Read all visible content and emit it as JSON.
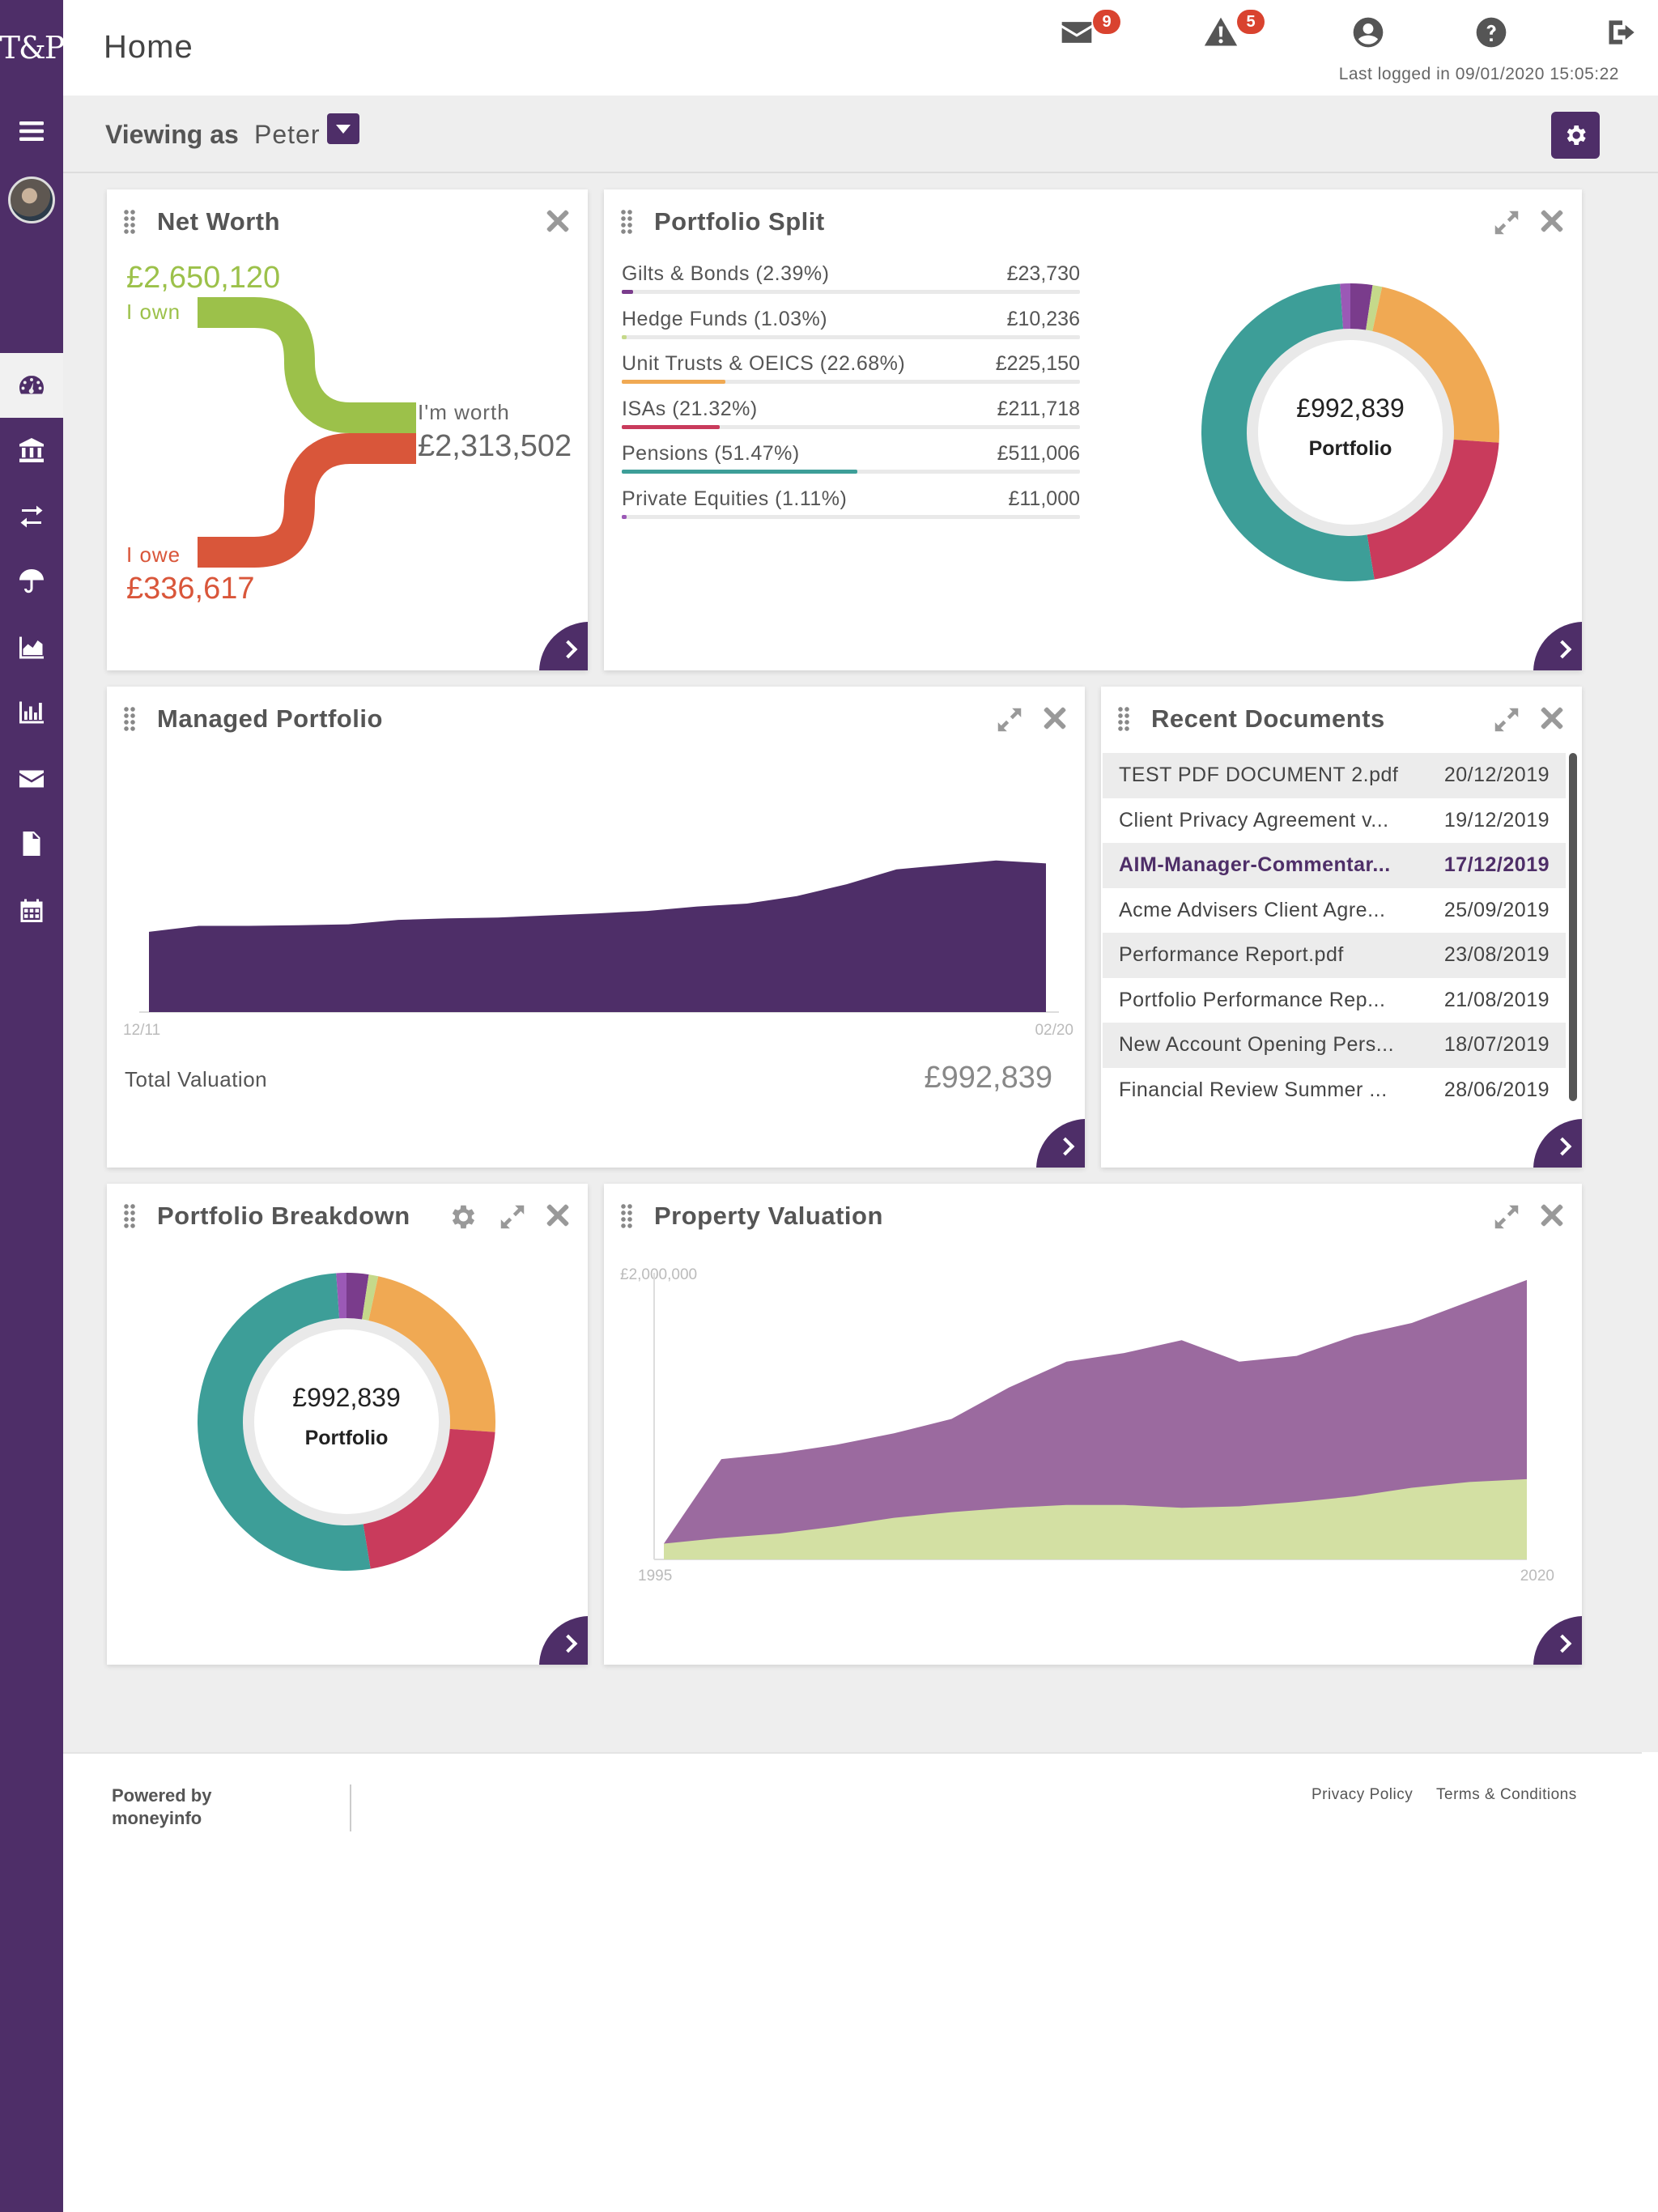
{
  "brand": {
    "logo_text": "T&P",
    "accent": "#4e2e68"
  },
  "header": {
    "title": "Home",
    "messages_count": "9",
    "alerts_count": "5",
    "last_logged": "Last logged in 09/01/2020 15:05:22",
    "icons": [
      "mail-icon",
      "alert-icon",
      "user-icon",
      "help-icon",
      "logout-icon"
    ]
  },
  "viewing": {
    "label": "Viewing as",
    "name": "Peter"
  },
  "sidebar": {
    "icons": [
      "menu-icon",
      "dashboard-icon",
      "bank-icon",
      "transfer-icon",
      "umbrella-icon",
      "area-chart-icon",
      "bar-chart-icon",
      "mail-icon",
      "document-icon",
      "calendar-icon"
    ]
  },
  "net_worth": {
    "title": "Net Worth",
    "own_value": "£2,650,120",
    "own_label": "I own",
    "worth_label": "I'm worth",
    "worth_value": "£2,313,502",
    "owe_label": "I owe",
    "owe_value": "£336,617",
    "colors": {
      "own": "#9cc14a",
      "owe": "#d9563a"
    }
  },
  "portfolio_split": {
    "title": "Portfolio Split",
    "items": [
      {
        "label": "Gilts & Bonds (2.39%)",
        "value": "£23,730",
        "pct": 2.39,
        "color": "#7a3c8c"
      },
      {
        "label": "Hedge Funds (1.03%)",
        "value": "£10,236",
        "pct": 1.03,
        "color": "#c5d98a"
      },
      {
        "label": "Unit Trusts & OEICS (22.68%)",
        "value": "£225,150",
        "pct": 22.68,
        "color": "#f0a953"
      },
      {
        "label": "ISAs (21.32%)",
        "value": "£211,718",
        "pct": 21.32,
        "color": "#c93b5c"
      },
      {
        "label": "Pensions (51.47%)",
        "value": "£511,006",
        "pct": 51.47,
        "color": "#3d9e98"
      },
      {
        "label": "Private Equities (1.11%)",
        "value": "£11,000",
        "pct": 1.11,
        "color": "#9b59b6"
      }
    ],
    "center_value": "£992,839",
    "center_label": "Portfolio"
  },
  "managed_portfolio": {
    "title": "Managed Portfolio",
    "total_label": "Total Valuation",
    "total_value": "£992,839",
    "color": "#4e2e68"
  },
  "recent_documents": {
    "title": "Recent Documents",
    "items": [
      {
        "name": "TEST PDF DOCUMENT 2.pdf",
        "date": "20/12/2019",
        "bold": false
      },
      {
        "name": "Client Privacy Agreement v...",
        "date": "19/12/2019",
        "bold": false
      },
      {
        "name": "AIM-Manager-Commentar...",
        "date": "17/12/2019",
        "bold": true
      },
      {
        "name": "Acme Advisers Client Agre...",
        "date": "25/09/2019",
        "bold": false
      },
      {
        "name": "Performance Report.pdf",
        "date": "23/08/2019",
        "bold": false
      },
      {
        "name": "Portfolio Performance Rep...",
        "date": "21/08/2019",
        "bold": false
      },
      {
        "name": "New Account Opening Pers...",
        "date": "18/07/2019",
        "bold": false
      },
      {
        "name": "Financial Review Summer ...",
        "date": "28/06/2019",
        "bold": false
      }
    ]
  },
  "portfolio_breakdown": {
    "title": "Portfolio Breakdown",
    "center_value": "£992,839",
    "center_label": "Portfolio"
  },
  "property_valuation": {
    "title": "Property Valuation",
    "colors": {
      "value": "#9b6a9f",
      "base": "#d3e0a3"
    }
  },
  "chart_data": [
    {
      "type": "pie",
      "title": "Portfolio Split",
      "categories": [
        "Gilts & Bonds",
        "Hedge Funds",
        "Unit Trusts & OEICS",
        "ISAs",
        "Pensions",
        "Private Equities"
      ],
      "values": [
        23730,
        10236,
        225150,
        211718,
        511006,
        11000
      ],
      "percentages": [
        2.39,
        1.03,
        22.68,
        21.32,
        51.47,
        1.11
      ]
    },
    {
      "type": "area",
      "title": "Managed Portfolio",
      "x_ticks": [
        "12/11",
        "02/20"
      ],
      "series": [
        {
          "values": [
            870000,
            890000,
            890000,
            892000,
            895000,
            910000,
            915000,
            918000,
            925000,
            932000,
            940000,
            955000,
            965000,
            990000,
            1030000,
            1080000,
            1095000,
            1110000,
            1100000
          ]
        }
      ]
    },
    {
      "type": "pie",
      "title": "Portfolio Breakdown",
      "categories": [
        "Gilts & Bonds",
        "Hedge Funds",
        "Unit Trusts & OEICS",
        "ISAs",
        "Pensions",
        "Private Equities"
      ],
      "values": [
        23730,
        10236,
        225150,
        211718,
        511006,
        11000
      ]
    },
    {
      "type": "area",
      "title": "Property Valuation",
      "y_tick": "£2,000,000",
      "x_ticks": [
        "1995",
        "2020"
      ],
      "series": [
        {
          "name": "",
          "values": [
            110000,
            700000,
            740000,
            800000,
            880000,
            980000,
            1200000,
            1380000,
            1440000,
            1530000,
            1380000,
            1420000,
            1560000,
            1650000,
            1800000,
            1950000
          ]
        },
        {
          "name": "",
          "values": [
            110000,
            150000,
            180000,
            230000,
            290000,
            330000,
            360000,
            380000,
            380000,
            360000,
            370000,
            400000,
            440000,
            500000,
            540000,
            560000
          ]
        }
      ]
    }
  ]
}
